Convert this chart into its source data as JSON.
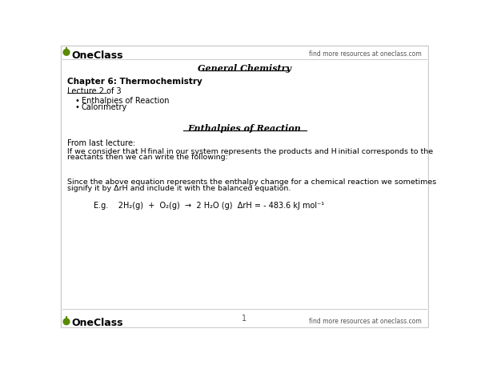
{
  "bg_color": "#ffffff",
  "border_color": "#cccccc",
  "oneclass_green": "#5a8a00",
  "oneclass_text": "OneClass",
  "top_right_text": "find more resources at oneclass.com",
  "bottom_right_text": "find more resources at oneclass.com",
  "title_text": "General Chemistry",
  "chapter_text": "Chapter 6: Thermochemistry",
  "lecture_text": "Lecture 2 of 3",
  "bullet1": "Enthalpies of Reaction",
  "bullet2": "Calorimetry",
  "section_title": "Enthalpies of Reaction",
  "from_last": "From last lecture:",
  "para1_line1": "If we consider that H final in our system represents the products and H initial corresponds to the",
  "para1_line2": "reactants then we can write the following:",
  "para2_line1": "Since the above equation represents the enthalpy change for a chemical reaction we sometimes",
  "para2_line2": "signify it by ΔrH and include it with the balanced equation.",
  "equation": "E.g.    2H₂(g)  +  O₂(g)  →  2 H₂O (g)  ΔrH = - 483.6 kJ mol⁻¹",
  "page_number": "1"
}
